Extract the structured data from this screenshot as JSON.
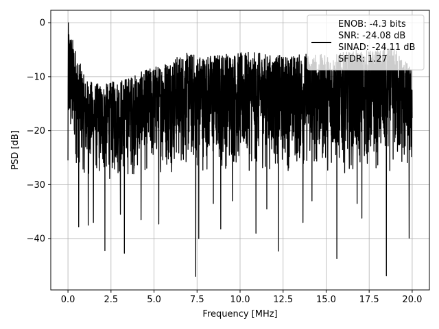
{
  "chart_data": {
    "type": "line",
    "title": "",
    "xlabel": "Frequency [MHz]",
    "ylabel": "PSD [dB]",
    "xlim": [
      -1.0,
      21.0
    ],
    "ylim": [
      -49.5,
      2.3
    ],
    "xticks": [
      0.0,
      2.5,
      5.0,
      7.5,
      10.0,
      12.5,
      15.0,
      17.5,
      20.0
    ],
    "xtick_labels": [
      "0.0",
      "2.5",
      "5.0",
      "7.5",
      "10.0",
      "12.5",
      "15.0",
      "17.5",
      "20.0"
    ],
    "yticks": [
      0,
      -10,
      -20,
      -30,
      -40
    ],
    "ytick_labels": [
      "0",
      "−10",
      "−20",
      "−30",
      "−40"
    ],
    "grid": true,
    "legend_position": "top-right",
    "legend_lines": [
      "ENOB: -4.3 bits",
      "SNR: -24.08 dB",
      "SINAD: -24.11 dB",
      "SFDR: 1.27"
    ],
    "series": [
      {
        "color": "#000000",
        "x_range": [
          0.0,
          20.0
        ],
        "envelope": {
          "description_points_x": [
            0.0,
            1.0,
            2.0,
            3.0,
            4.0,
            5.0,
            6.0,
            7.0,
            8.0,
            9.0,
            10.0,
            11.0,
            12.0,
            13.0,
            14.0,
            15.0,
            16.0,
            17.0,
            18.0,
            19.0,
            20.0
          ],
          "upper_db": [
            0.0,
            -10.5,
            -11.5,
            -10.5,
            -9.5,
            -8.0,
            -6.5,
            -5.5,
            -6.0,
            -5.5,
            -5.5,
            -5.5,
            -6.0,
            -6.0,
            -5.5,
            -6.0,
            -5.5,
            -5.0,
            -5.0,
            -4.5,
            -8.5
          ],
          "typical_low_db": [
            -25.5,
            -29.0,
            -30.0,
            -29.5,
            -29.0,
            -28.5,
            -28.0,
            -28.0,
            -28.0,
            -28.0,
            -28.0,
            -28.0,
            -28.0,
            -28.0,
            -28.0,
            -28.0,
            -28.0,
            -28.0,
            -28.0,
            -28.5,
            -30.0
          ]
        },
        "deep_notches": [
          {
            "x": 0.62,
            "y": -37.8
          },
          {
            "x": 1.18,
            "y": -37.5
          },
          {
            "x": 1.48,
            "y": -37.0
          },
          {
            "x": 2.15,
            "y": -42.2
          },
          {
            "x": 3.05,
            "y": -35.5
          },
          {
            "x": 3.28,
            "y": -42.7
          },
          {
            "x": 4.25,
            "y": -36.5
          },
          {
            "x": 5.28,
            "y": -37.3
          },
          {
            "x": 7.42,
            "y": -47.0
          },
          {
            "x": 7.6,
            "y": -40.0
          },
          {
            "x": 8.45,
            "y": -33.5
          },
          {
            "x": 8.88,
            "y": -38.2
          },
          {
            "x": 9.55,
            "y": -33.0
          },
          {
            "x": 10.92,
            "y": -39.0
          },
          {
            "x": 11.55,
            "y": -34.5
          },
          {
            "x": 12.22,
            "y": -42.3
          },
          {
            "x": 13.65,
            "y": -37.0
          },
          {
            "x": 14.18,
            "y": -33.0
          },
          {
            "x": 15.62,
            "y": -43.7
          },
          {
            "x": 16.8,
            "y": -33.5
          },
          {
            "x": 17.08,
            "y": -36.2
          },
          {
            "x": 18.5,
            "y": -46.9
          },
          {
            "x": 19.82,
            "y": -39.9
          }
        ]
      }
    ]
  }
}
